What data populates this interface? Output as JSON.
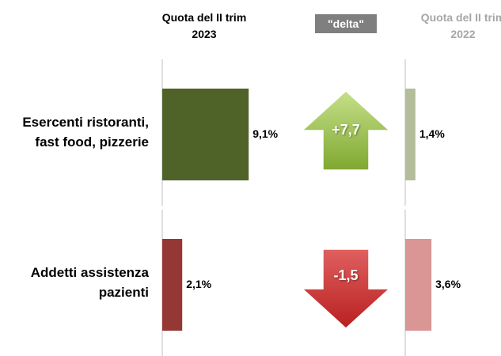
{
  "chart_data": {
    "type": "bar",
    "categories": [
      "Esercenti ristoranti, fast food, pizzerie",
      "Addetti assistenza pazienti"
    ],
    "series": [
      {
        "name": "Quota del II trim 2023",
        "colors": [
          "#4f6228",
          "#953735"
        ],
        "values": [
          9.1,
          2.1
        ],
        "value_labels": [
          "9,1%",
          "2,1%"
        ]
      },
      {
        "name": "Quota del II trim 2022",
        "colors": [
          "#b3bd9a",
          "#d99694"
        ],
        "values": [
          1.4,
          3.6
        ],
        "value_labels": [
          "1,4%",
          "3,6%"
        ]
      }
    ],
    "delta": {
      "name": "\"delta\"",
      "colors": [
        "#9bc34a",
        "#d23a3a"
      ],
      "values": [
        7.7,
        -1.5
      ],
      "value_labels": [
        "+7,7",
        "-1,5"
      ]
    }
  }
}
